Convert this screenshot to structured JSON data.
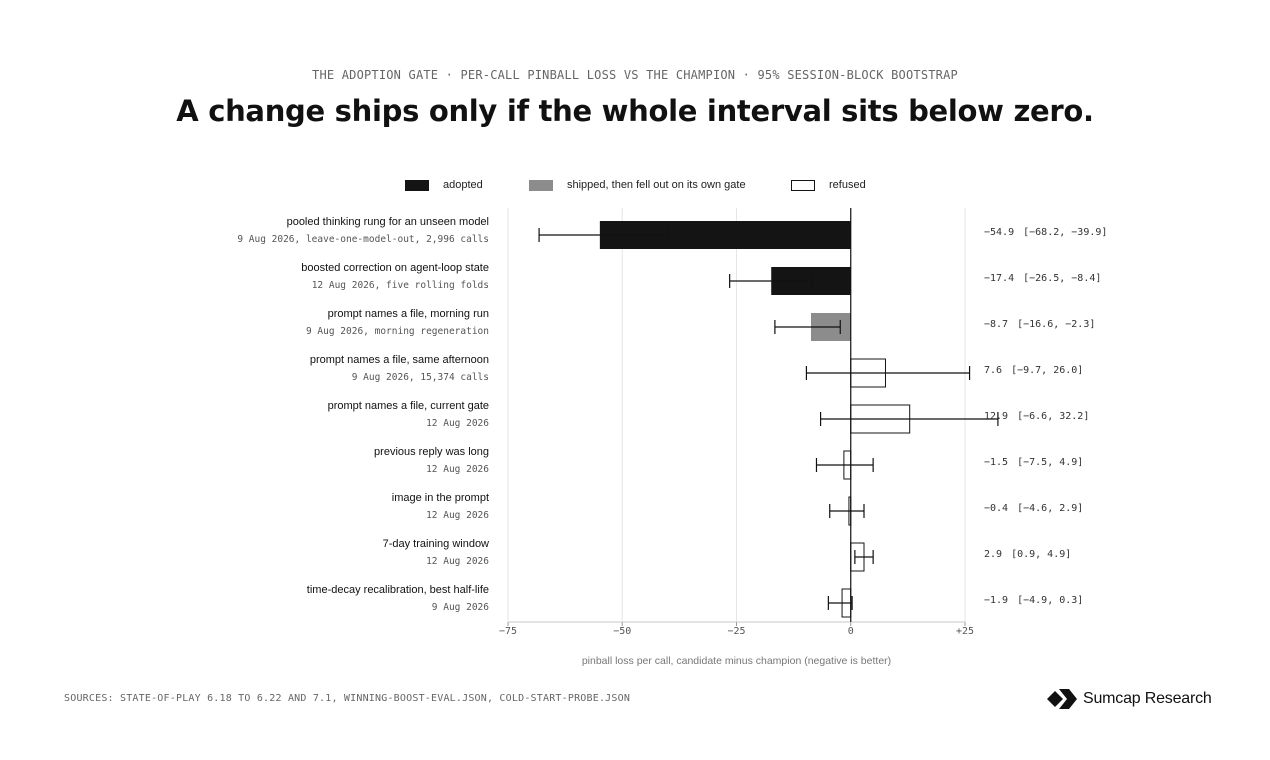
{
  "header": {
    "kicker": "THE ADOPTION GATE  ·  PER-CALL PINBALL LOSS VS THE CHAMPION  ·  95% SESSION-BLOCK BOOTSTRAP",
    "headline": "A change ships only if the whole interval sits below zero."
  },
  "legend": {
    "adopted": "adopted",
    "shipped": "shipped, then fell out on its own gate",
    "refused": "refused"
  },
  "colors": {
    "adopted": "#141414",
    "shipped": "#8c8c8c",
    "refused": "#ffffff",
    "outline": "#141414",
    "grid": "#e6e6e6",
    "axis": "#c8c8c8"
  },
  "chart_data": {
    "type": "bar",
    "orientation": "horizontal",
    "title": "A change ships only if the whole interval sits below zero.",
    "xlabel": "pinball loss per call, candidate minus champion (negative is better)",
    "xlim": [
      -75,
      25
    ],
    "xticks": [
      -75,
      -50,
      -25,
      0,
      25
    ],
    "xtick_labels": [
      "−75",
      "−50",
      "−25",
      "0",
      "+25"
    ],
    "grid": "vertical",
    "legend_position": "top-center",
    "rows": [
      {
        "label": "pooled thinking rung for an unseen model",
        "sub": "9 Aug 2026, leave-one-model-out, 2,996 calls",
        "value": -54.9,
        "lo": -68.2,
        "hi": -39.9,
        "status": "adopted",
        "value_text": "−54.9",
        "ci_text": "[−68.2, −39.9]"
      },
      {
        "label": "boosted correction on agent-loop state",
        "sub": "12 Aug 2026, five rolling folds",
        "value": -17.4,
        "lo": -26.5,
        "hi": -8.4,
        "status": "adopted",
        "value_text": "−17.4",
        "ci_text": "[−26.5, −8.4]"
      },
      {
        "label": "prompt names a file, morning run",
        "sub": "9 Aug 2026, morning regeneration",
        "value": -8.7,
        "lo": -16.6,
        "hi": -2.3,
        "status": "shipped",
        "value_text": "−8.7",
        "ci_text": "[−16.6, −2.3]"
      },
      {
        "label": "prompt names a file, same afternoon",
        "sub": "9 Aug 2026, 15,374 calls",
        "value": 7.6,
        "lo": -9.7,
        "hi": 26.0,
        "status": "refused",
        "value_text": "7.6",
        "ci_text": "[−9.7, 26.0]"
      },
      {
        "label": "prompt names a file, current gate",
        "sub": "12 Aug 2026",
        "value": 12.9,
        "lo": -6.6,
        "hi": 32.2,
        "status": "refused",
        "value_text": "12.9",
        "ci_text": "[−6.6, 32.2]"
      },
      {
        "label": "previous reply was long",
        "sub": "12 Aug 2026",
        "value": -1.5,
        "lo": -7.5,
        "hi": 4.9,
        "status": "refused",
        "value_text": "−1.5",
        "ci_text": "[−7.5, 4.9]"
      },
      {
        "label": "image in the prompt",
        "sub": "12 Aug 2026",
        "value": -0.4,
        "lo": -4.6,
        "hi": 2.9,
        "status": "refused",
        "value_text": "−0.4",
        "ci_text": "[−4.6, 2.9]"
      },
      {
        "label": "7-day training window",
        "sub": "12 Aug 2026",
        "value": 2.9,
        "lo": 0.9,
        "hi": 4.9,
        "status": "refused",
        "value_text": "2.9",
        "ci_text": "[0.9, 4.9]"
      },
      {
        "label": "time-decay recalibration, best half-life",
        "sub": "9 Aug 2026",
        "value": -1.9,
        "lo": -4.9,
        "hi": 0.3,
        "status": "refused",
        "value_text": "−1.9",
        "ci_text": "[−4.9, 0.3]"
      }
    ]
  },
  "footer": {
    "sources": "SOURCES: STATE-OF-PLAY 6.18 TO 6.22 AND 7.1, WINNING-BOOST-EVAL.JSON, COLD-START-PROBE.JSON",
    "brand": "Sumcap Research",
    "brand_icon": "sumcap-logo-icon"
  }
}
